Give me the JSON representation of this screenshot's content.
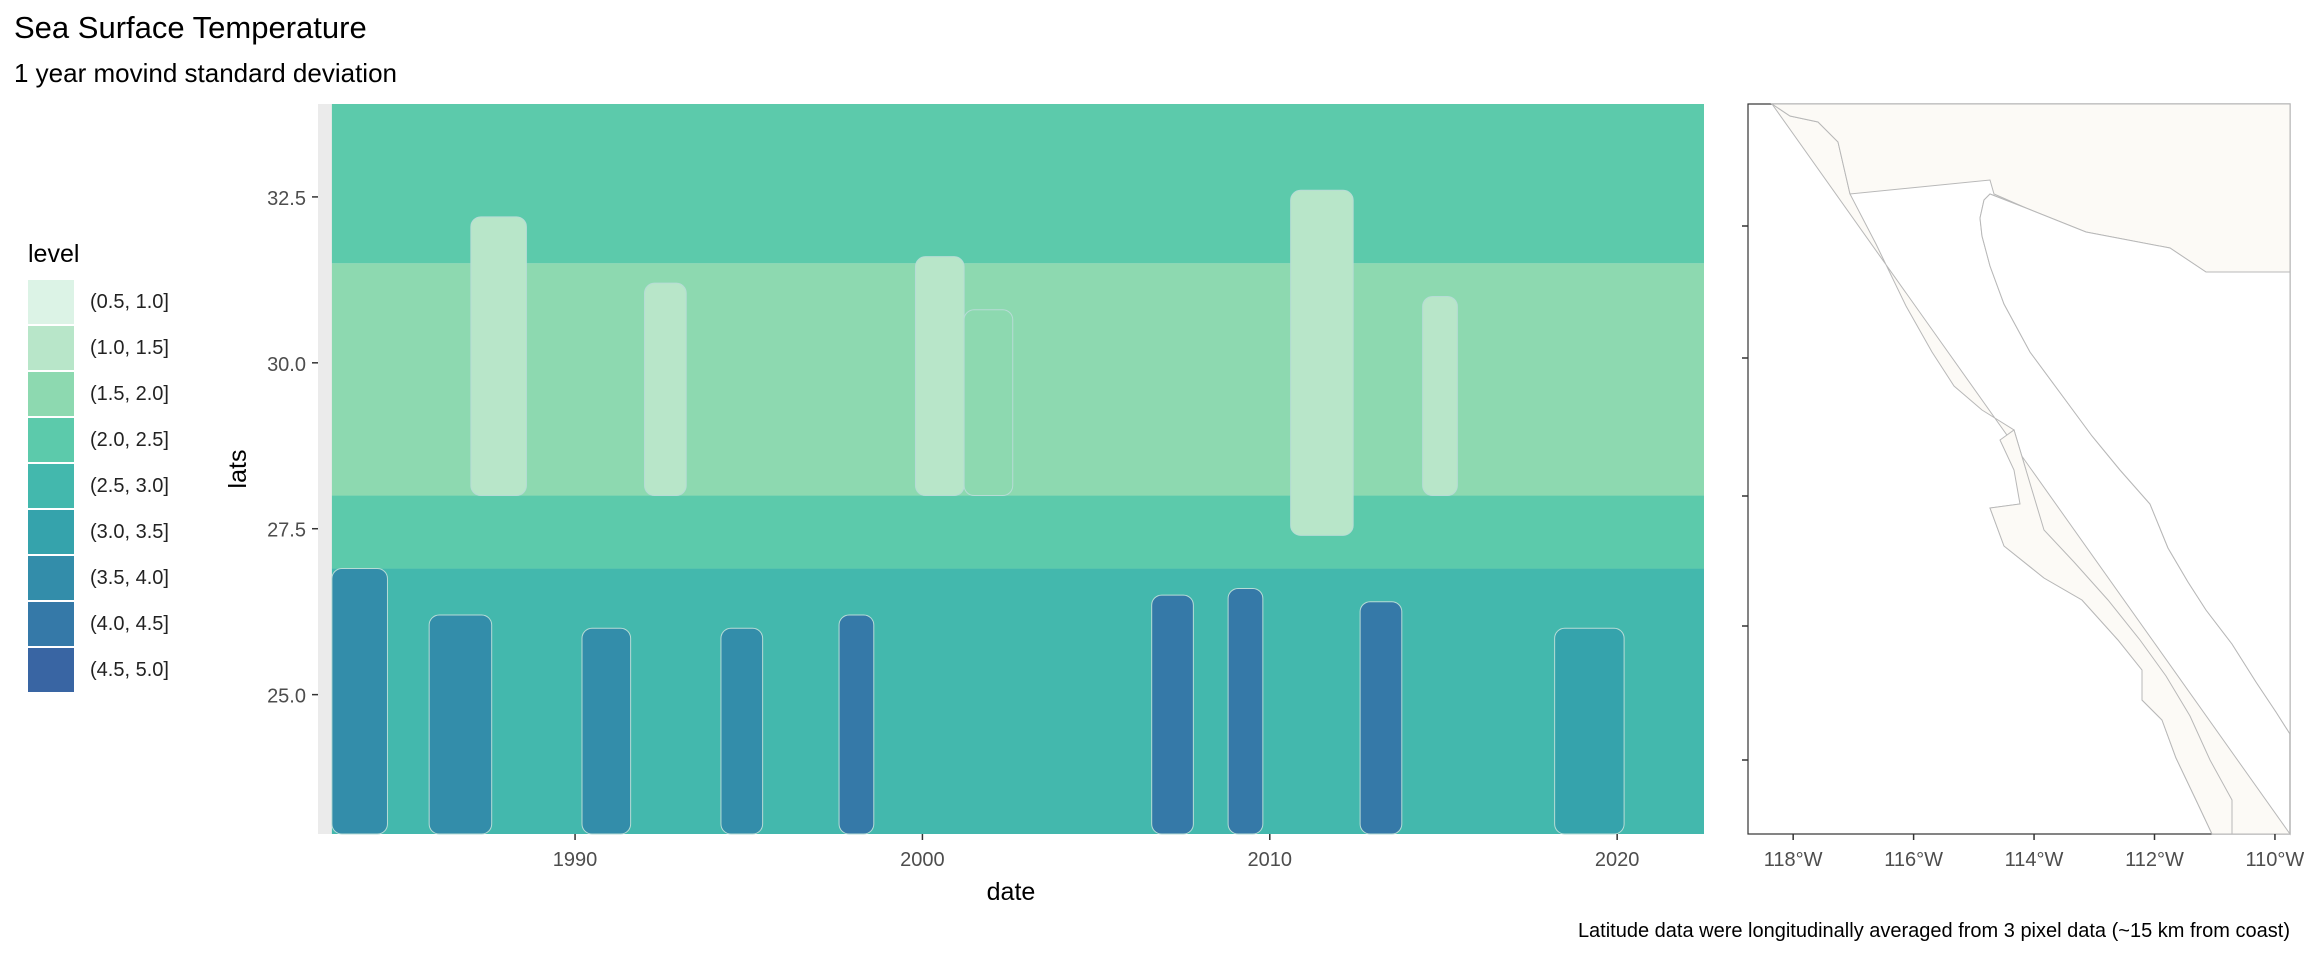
{
  "chart_data": [
    {
      "type": "heatmap",
      "title": "Sea Surface Temperature",
      "subtitle": "1 year movind standard deviation",
      "xlabel": "date",
      "ylabel": "lats",
      "xlim": [
        1982.6,
        2022.5
      ],
      "ylim": [
        22.9,
        33.9
      ],
      "x_ticks": [
        1990,
        2000,
        2010,
        2020
      ],
      "x_tick_labels": [
        "1990",
        "2000",
        "2010",
        "2020"
      ],
      "y_ticks": [
        25.0,
        27.5,
        30.0,
        32.5
      ],
      "y_tick_labels": [
        "25.0",
        "27.5",
        "30.0",
        "32.5"
      ],
      "legend_title": "level",
      "legend_position": "left",
      "grid": true,
      "levels": [
        {
          "label": "(0.5, 1.0]",
          "low": 0.5,
          "high": 1.0,
          "color": "#dcf3e6"
        },
        {
          "label": "(1.0, 1.5]",
          "low": 1.0,
          "high": 1.5,
          "color": "#b8e6c9"
        },
        {
          "label": "(1.5, 2.0]",
          "low": 1.5,
          "high": 2.0,
          "color": "#8dd9b0"
        },
        {
          "label": "(2.0, 2.5]",
          "low": 2.0,
          "high": 2.5,
          "color": "#5ccaab"
        },
        {
          "label": "(2.5, 3.0]",
          "low": 2.5,
          "high": 3.0,
          "color": "#43b8ad"
        },
        {
          "label": "(3.0, 3.5]",
          "low": 3.0,
          "high": 3.5,
          "color": "#35a3ac"
        },
        {
          "label": "(3.5, 4.0]",
          "low": 3.5,
          "high": 4.0,
          "color": "#338daa"
        },
        {
          "label": "(4.0, 4.5]",
          "low": 4.0,
          "high": 4.5,
          "color": "#3579a8"
        },
        {
          "label": "(4.5, 5.0]",
          "low": 4.5,
          "high": 5.0,
          "color": "#3965a3"
        }
      ],
      "lat_bands": [
        {
          "from": 22.9,
          "to": 26.9,
          "level": "(2.5, 3.0]"
        },
        {
          "from": 26.9,
          "to": 28.0,
          "level": "(2.0, 2.5]"
        },
        {
          "from": 28.0,
          "to": 31.5,
          "level": "(1.5, 2.0]"
        },
        {
          "from": 31.5,
          "to": 33.9,
          "level": "(2.0, 2.5]"
        }
      ],
      "features": [
        {
          "x0": 1983.0,
          "x1": 1984.6,
          "y0": 22.9,
          "y1": 26.9,
          "level": "(3.5, 4.0]"
        },
        {
          "x0": 1985.8,
          "x1": 1987.6,
          "y0": 22.9,
          "y1": 26.2,
          "level": "(3.5, 4.0]"
        },
        {
          "x0": 1987.0,
          "x1": 1988.6,
          "y0": 28.0,
          "y1": 32.2,
          "level": "(1.0, 1.5]"
        },
        {
          "x0": 1990.2,
          "x1": 1991.6,
          "y0": 22.9,
          "y1": 26.0,
          "level": "(3.5, 4.0]"
        },
        {
          "x0": 1992.0,
          "x1": 1993.2,
          "y0": 28.0,
          "y1": 31.2,
          "level": "(1.0, 1.5]"
        },
        {
          "x0": 1994.2,
          "x1": 1995.4,
          "y0": 22.9,
          "y1": 26.0,
          "level": "(3.5, 4.0]"
        },
        {
          "x0": 1997.6,
          "x1": 1998.6,
          "y0": 22.9,
          "y1": 26.2,
          "level": "(4.0, 4.5]"
        },
        {
          "x0": 1999.8,
          "x1": 2001.2,
          "y0": 28.0,
          "y1": 31.6,
          "level": "(1.0, 1.5]"
        },
        {
          "x0": 2001.2,
          "x1": 2002.6,
          "y0": 28.0,
          "y1": 30.8,
          "level": "(1.5, 2.0]"
        },
        {
          "x0": 2006.6,
          "x1": 2007.8,
          "y0": 22.9,
          "y1": 26.5,
          "level": "(4.0, 4.5]"
        },
        {
          "x0": 2008.8,
          "x1": 2009.8,
          "y0": 22.9,
          "y1": 26.6,
          "level": "(4.0, 4.5]"
        },
        {
          "x0": 2010.6,
          "x1": 2012.4,
          "y0": 27.4,
          "y1": 32.6,
          "level": "(1.0, 1.5]"
        },
        {
          "x0": 2012.6,
          "x1": 2013.8,
          "y0": 22.9,
          "y1": 26.4,
          "level": "(4.0, 4.5]"
        },
        {
          "x0": 2014.4,
          "x1": 2015.4,
          "y0": 28.0,
          "y1": 31.0,
          "level": "(1.0, 1.5]"
        },
        {
          "x0": 2018.2,
          "x1": 2020.2,
          "y0": 22.9,
          "y1": 26.0,
          "level": "(3.0, 3.5]"
        }
      ]
    },
    {
      "type": "map",
      "x_ticks": [
        -118,
        -116,
        -114,
        -112,
        -110
      ],
      "x_tick_labels": [
        "118°W",
        "116°W",
        "114°W",
        "112°W",
        "110°W"
      ],
      "xlim": [
        -118.75,
        -109.75
      ],
      "land_color": "#fcfaf6"
    }
  ],
  "caption": "Latitude data were longitudinally averaged from 3 pixel data (~15 km from coast)"
}
